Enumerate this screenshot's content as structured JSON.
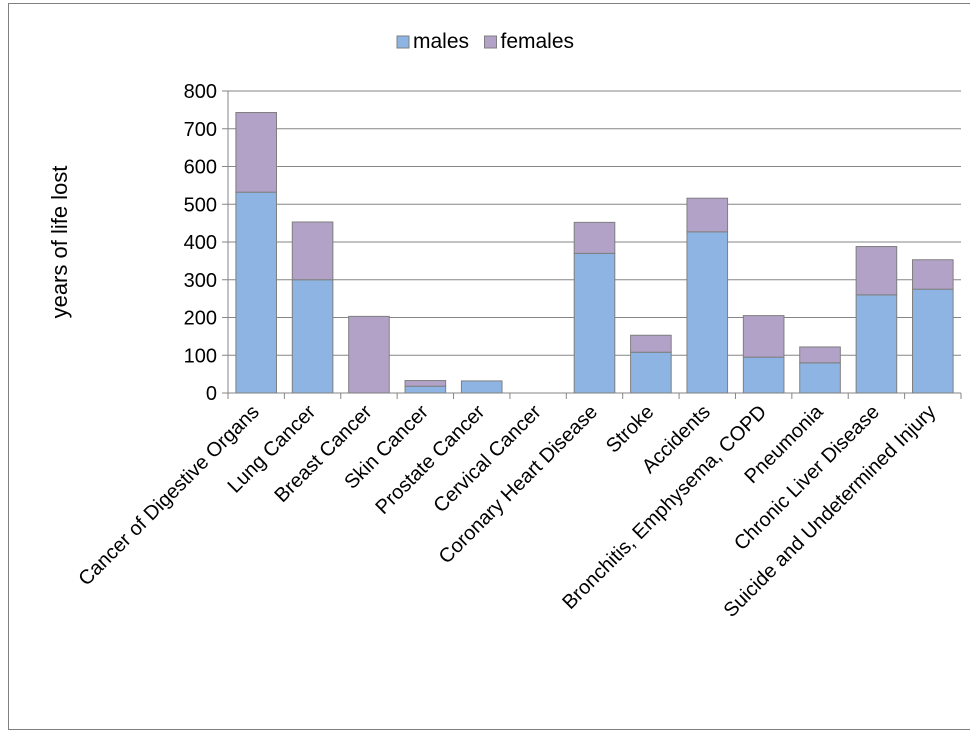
{
  "chart_data": {
    "type": "bar",
    "stacked": true,
    "title": "",
    "xlabel": "",
    "ylabel": "years of life lost",
    "ylim": [
      0,
      800
    ],
    "yticks": [
      0,
      100,
      200,
      300,
      400,
      500,
      600,
      700,
      800
    ],
    "grid": true,
    "legend_position": "top-center",
    "categories": [
      "Cancer of Digestive Organs",
      "Lung Cancer",
      "Breast Cancer",
      "Skin Cancer",
      "Prostate Cancer",
      "Cervical Cancer",
      "Coronary Heart Disease",
      "Stroke",
      "Accidents",
      "Bronchitis, Emphysema, COPD",
      "Pneumonia",
      "Chronic Liver Disease",
      "Suicide and Undetermined Injury"
    ],
    "series": [
      {
        "name": "males",
        "color": "#8db4e2",
        "values": [
          532,
          300,
          0,
          18,
          32,
          0,
          370,
          108,
          427,
          95,
          80,
          260,
          275
        ]
      },
      {
        "name": "females",
        "color": "#b3a2c7",
        "values": [
          211,
          153,
          203,
          15,
          0,
          0,
          82,
          45,
          89,
          110,
          42,
          128,
          78
        ]
      }
    ]
  }
}
